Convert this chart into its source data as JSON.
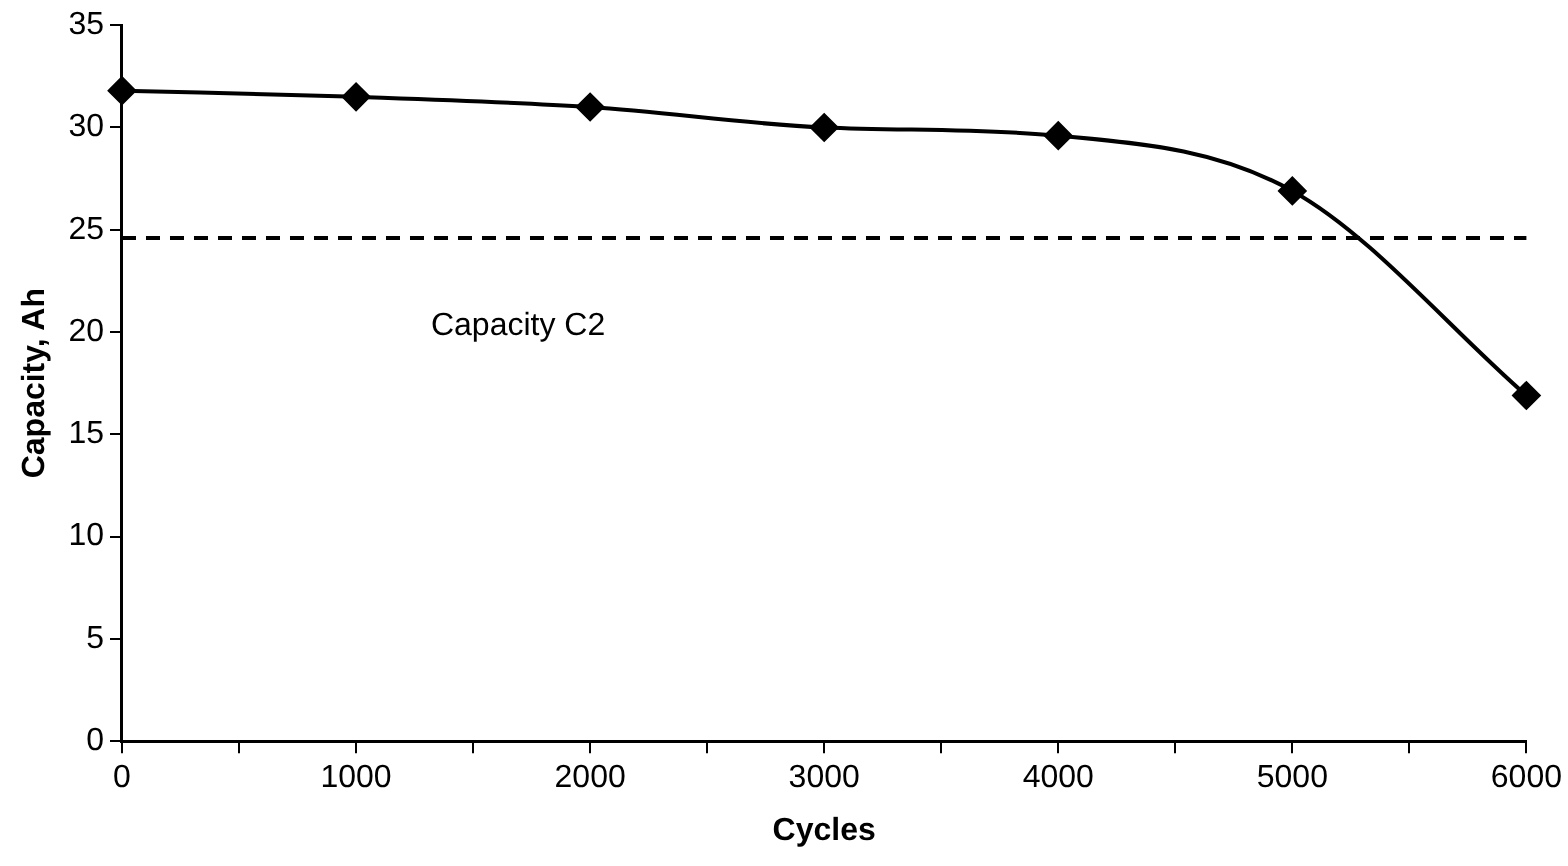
{
  "chart_data": {
    "type": "line",
    "xlabel": "Cycles",
    "ylabel": "Capacity, Ah",
    "x": [
      0,
      1000,
      2000,
      3000,
      4000,
      5000,
      6000
    ],
    "series": [
      {
        "color": "#000000",
        "values": [
          31.8,
          31.5,
          31.0,
          30.0,
          29.6,
          26.9,
          16.9
        ]
      }
    ],
    "xlim": [
      0,
      6000
    ],
    "xticks": [
      0,
      {
        "value": 500,
        "label": null
      },
      1000,
      {
        "value": 1500,
        "label": null
      },
      2000,
      {
        "value": 2500,
        "label": null
      },
      3000,
      {
        "value": 3500,
        "label": null
      },
      4000,
      {
        "value": 4500,
        "label": null
      },
      5000,
      {
        "value": 5500,
        "label": null
      },
      6000
    ],
    "ylim": [
      0,
      35
    ],
    "yticks": [
      0,
      5,
      10,
      15,
      20,
      25,
      30,
      35
    ],
    "ref_lines": [
      {
        "axis": "y",
        "value": 24.6,
        "label": "Capacity C2",
        "color": "#000000",
        "line_style": "dashed"
      }
    ],
    "grid": false,
    "legend": false,
    "marker": "diamond",
    "line_style": "solid"
  }
}
